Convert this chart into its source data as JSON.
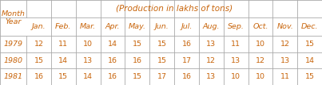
{
  "title": "(Production in lakhs of tons)",
  "months": [
    "Jan.",
    "Feb.",
    "Mar.",
    "Apr.",
    "May.",
    "Jun.",
    "Jul.",
    "Aug.",
    "Sep.",
    "Oct.",
    "Nov.",
    "Dec."
  ],
  "rows": [
    [
      "1979",
      "12",
      "11",
      "10",
      "14",
      "15",
      "15",
      "16",
      "13",
      "11",
      "10",
      "12",
      "15"
    ],
    [
      "1980",
      "15",
      "14",
      "13",
      "16",
      "16",
      "15",
      "17",
      "12",
      "13",
      "12",
      "13",
      "14"
    ],
    [
      "1981",
      "16",
      "15",
      "14",
      "16",
      "15",
      "17",
      "16",
      "13",
      "10",
      "10",
      "11",
      "15"
    ]
  ],
  "text_color": "#c8640a",
  "border_color": "#aaaaaa",
  "bg_color": "#ffffff",
  "title_fontsize": 7.5,
  "cell_fontsize": 6.8,
  "fig_width": 4.03,
  "fig_height": 1.07,
  "dpi": 100
}
